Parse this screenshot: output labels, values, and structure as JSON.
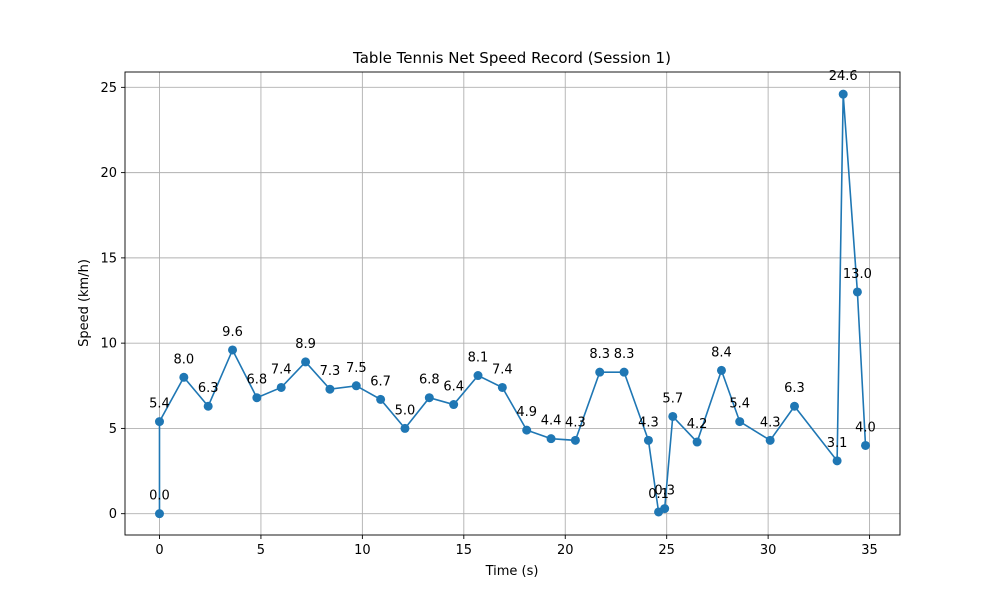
{
  "chart_data": {
    "type": "line",
    "title": "Table Tennis Net Speed Record (Session 1)",
    "xlabel": "Time (s)",
    "ylabel": "Speed (km/h)",
    "xlim": [
      -1.7,
      36.5
    ],
    "ylim": [
      -1.25,
      25.9
    ],
    "xticks": [
      0,
      5,
      10,
      15,
      20,
      25,
      30,
      35
    ],
    "yticks": [
      0,
      5,
      10,
      15,
      20,
      25
    ],
    "grid": true,
    "series_color": "#1f77b4",
    "series": [
      {
        "x": [
          0.0,
          0.0,
          1.2,
          2.4,
          3.6,
          4.8,
          6.0,
          7.2,
          8.4,
          9.7,
          10.9,
          12.1,
          13.3,
          14.5,
          15.7,
          16.9,
          18.1,
          19.3,
          20.5,
          21.7,
          22.9,
          24.1,
          24.6,
          24.9,
          25.3,
          26.5,
          27.7,
          28.6,
          30.1,
          31.3,
          33.4,
          33.7,
          34.4,
          34.8
        ],
        "y": [
          0.0,
          5.4,
          8.0,
          6.3,
          9.6,
          6.8,
          7.4,
          8.9,
          7.3,
          7.5,
          6.7,
          5.0,
          6.8,
          6.4,
          8.1,
          7.4,
          4.9,
          4.4,
          4.3,
          8.3,
          8.3,
          4.3,
          0.1,
          0.3,
          5.7,
          4.2,
          8.4,
          5.4,
          4.3,
          6.3,
          3.1,
          24.6,
          13.0,
          4.0
        ],
        "labels": [
          "0.0",
          "5.4",
          "8.0",
          "6.3",
          "9.6",
          "6.8",
          "7.4",
          "8.9",
          "7.3",
          "7.5",
          "6.7",
          "5.0",
          "6.8",
          "6.4",
          "8.1",
          "7.4",
          "4.9",
          "4.4",
          "4.3",
          "8.3",
          "8.3",
          "4.3",
          "0.1",
          "0.3",
          "5.7",
          "4.2",
          "8.4",
          "5.4",
          "4.3",
          "6.3",
          "3.1",
          "24.6",
          "13.0",
          "4.0"
        ]
      }
    ]
  }
}
